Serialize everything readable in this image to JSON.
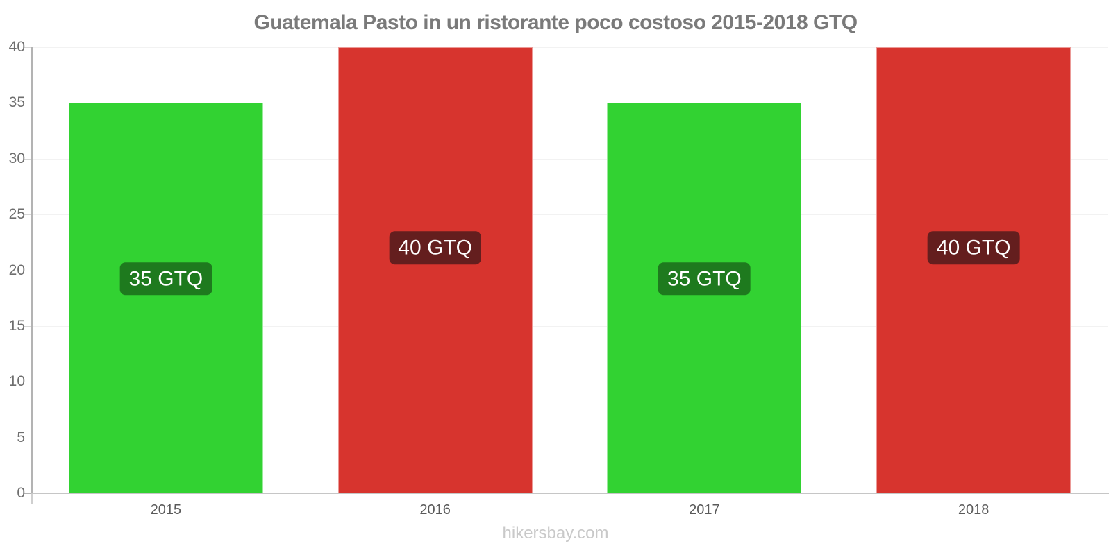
{
  "title": "Guatemala Pasto in un ristorante poco costoso 2015-2018 GTQ",
  "footer": "hikersbay.com",
  "colors": {
    "green_bar": "#32d232",
    "red_bar": "#d7342e",
    "green_label_box": "#1e7a1e",
    "red_label_box": "#641e1e",
    "title_text": "#7a7a7a",
    "axis_text": "#6e6e6e",
    "footer_text": "#c9c9c9"
  },
  "chart_data": {
    "type": "bar",
    "title": "Guatemala Pasto in un ristorante poco costoso 2015-2018 GTQ",
    "categories": [
      "2015",
      "2016",
      "2017",
      "2018"
    ],
    "values": [
      35,
      40,
      35,
      40
    ],
    "bar_labels": [
      "35 GTQ",
      "40 GTQ",
      "35 GTQ",
      "40 GTQ"
    ],
    "bar_colors": [
      "#32d232",
      "#d7342e",
      "#32d232",
      "#d7342e"
    ],
    "label_box_colors": [
      "#1e7a1e",
      "#641e1e",
      "#1e7a1e",
      "#641e1e"
    ],
    "xlabel": "",
    "ylabel": "",
    "ylim": [
      0,
      40
    ],
    "yticks": [
      0,
      5,
      10,
      15,
      20,
      25,
      30,
      35,
      40
    ],
    "grid": true,
    "legend": false,
    "currency": "GTQ"
  }
}
